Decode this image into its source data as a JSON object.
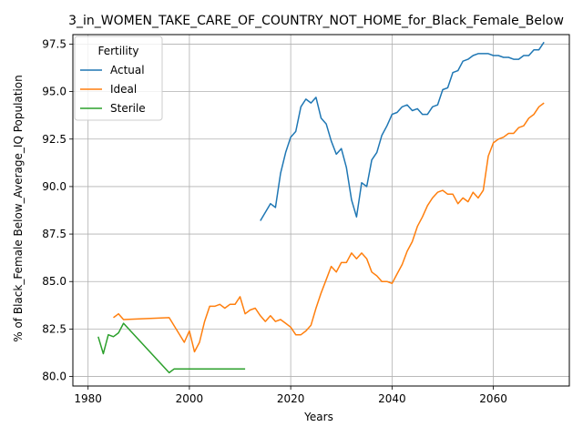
{
  "chart_data": {
    "type": "line",
    "title": "3_in_WOMEN_TAKE_CARE_OF_COUNTRY_NOT_HOME_for_Black_Female_Below",
    "xlabel": "Years",
    "ylabel": "% of Black_Female Below_Average_IQ Population",
    "xlim": [
      1977,
      2075
    ],
    "ylim": [
      79.5,
      98.0
    ],
    "xticks": [
      1980,
      2000,
      2020,
      2040,
      2060
    ],
    "yticks": [
      80.0,
      82.5,
      85.0,
      87.5,
      90.0,
      92.5,
      95.0,
      97.5
    ],
    "ytick_labels": [
      "80.0",
      "82.5",
      "85.0",
      "87.5",
      "90.0",
      "92.5",
      "95.0",
      "97.5"
    ],
    "grid": true,
    "legend": {
      "title": "Fertility",
      "position": "upper-left"
    },
    "series": [
      {
        "name": "Actual",
        "color": "#1f77b4",
        "x": [
          2014,
          2016,
          2017,
          2018,
          2019,
          2020,
          2021,
          2022,
          2023,
          2024,
          2025,
          2026,
          2027,
          2028,
          2029,
          2030,
          2031,
          2032,
          2033,
          2034,
          2035,
          2036,
          2037,
          2038,
          2039,
          2040,
          2041,
          2042,
          2043,
          2044,
          2045,
          2046,
          2047,
          2048,
          2049,
          2050,
          2051,
          2052,
          2053,
          2054,
          2055,
          2056,
          2057,
          2058,
          2059,
          2060,
          2061,
          2062,
          2063,
          2064,
          2065,
          2066,
          2067,
          2068,
          2069,
          2070
        ],
        "y": [
          88.2,
          89.1,
          88.9,
          90.7,
          91.8,
          92.6,
          92.9,
          94.2,
          94.6,
          94.4,
          94.7,
          93.6,
          93.3,
          92.4,
          91.7,
          92.0,
          91.0,
          89.3,
          88.4,
          90.2,
          90.0,
          91.4,
          91.8,
          92.7,
          93.2,
          93.8,
          93.9,
          94.2,
          94.3,
          94.0,
          94.1,
          93.8,
          93.8,
          94.2,
          94.3,
          95.1,
          95.2,
          96.0,
          96.1,
          96.6,
          96.7,
          96.9,
          97.0,
          97.0,
          97.0,
          96.9,
          96.9,
          96.8,
          96.8,
          96.7,
          96.7,
          96.9,
          96.9,
          97.2,
          97.2,
          97.6
        ]
      },
      {
        "name": "Ideal",
        "color": "#ff7f0e",
        "x": [
          1985,
          1986,
          1987,
          1996,
          1999,
          2000,
          2001,
          2002,
          2003,
          2004,
          2005,
          2006,
          2007,
          2008,
          2009,
          2010,
          2011,
          2012,
          2013,
          2014,
          2015,
          2016,
          2017,
          2018,
          2019,
          2020,
          2021,
          2022,
          2023,
          2024,
          2025,
          2026,
          2027,
          2028,
          2029,
          2030,
          2031,
          2032,
          2033,
          2034,
          2035,
          2036,
          2037,
          2038,
          2039,
          2040,
          2041,
          2042,
          2043,
          2044,
          2045,
          2046,
          2047,
          2048,
          2049,
          2050,
          2051,
          2052,
          2053,
          2054,
          2055,
          2056,
          2057,
          2058,
          2059,
          2060,
          2061,
          2062,
          2063,
          2064,
          2065,
          2066,
          2067,
          2068,
          2069,
          2070
        ],
        "y": [
          83.1,
          83.3,
          83.0,
          83.1,
          81.8,
          82.4,
          81.3,
          81.8,
          82.9,
          83.7,
          83.7,
          83.8,
          83.6,
          83.8,
          83.8,
          84.2,
          83.3,
          83.5,
          83.6,
          83.2,
          82.9,
          83.2,
          82.9,
          83.0,
          82.8,
          82.6,
          82.2,
          82.2,
          82.4,
          82.7,
          83.6,
          84.4,
          85.1,
          85.8,
          85.5,
          86.0,
          86.0,
          86.5,
          86.2,
          86.5,
          86.2,
          85.5,
          85.3,
          85.0,
          85.0,
          84.9,
          85.4,
          85.9,
          86.6,
          87.1,
          87.9,
          88.4,
          89.0,
          89.4,
          89.7,
          89.8,
          89.6,
          89.6,
          89.1,
          89.4,
          89.2,
          89.7,
          89.4,
          89.8,
          91.6,
          92.3,
          92.5,
          92.6,
          92.8,
          92.8,
          93.1,
          93.2,
          93.6,
          93.8,
          94.2,
          94.4
        ]
      },
      {
        "name": "Sterile",
        "color": "#2ca02c",
        "x": [
          1982,
          1983,
          1984,
          1985,
          1986,
          1987,
          1996,
          1997,
          2011
        ],
        "y": [
          82.1,
          81.2,
          82.2,
          82.1,
          82.3,
          82.8,
          80.2,
          80.4,
          80.4
        ]
      }
    ]
  }
}
